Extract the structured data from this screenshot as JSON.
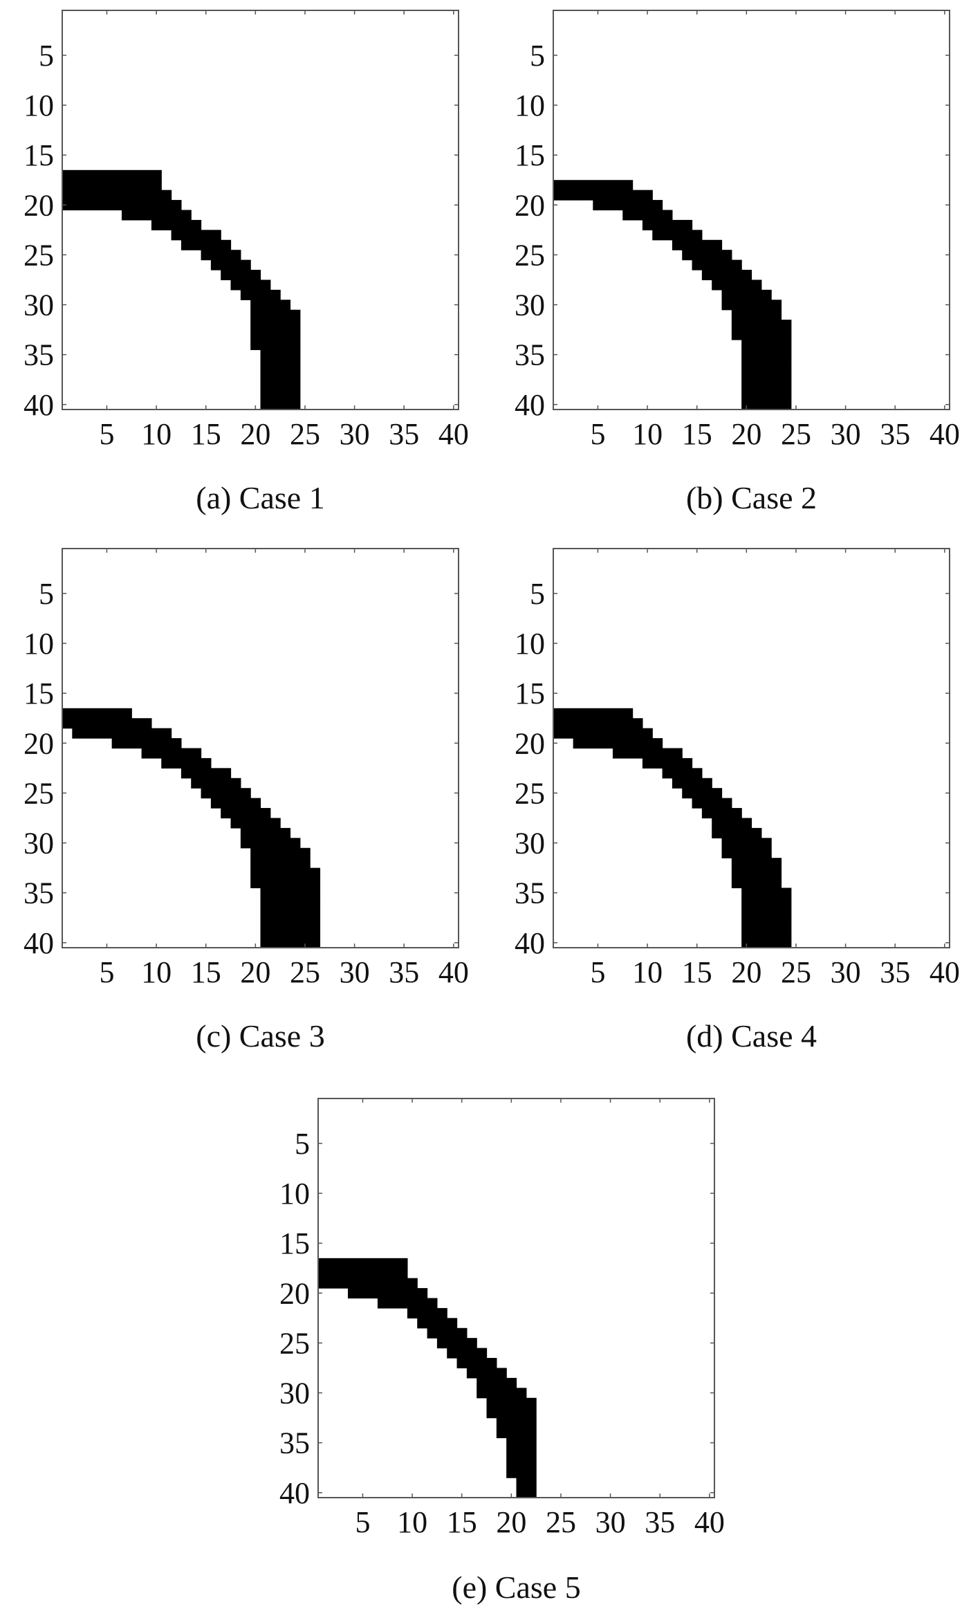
{
  "colors": {
    "band": "#000000",
    "background": "#ffffff",
    "frame": "#555555"
  },
  "chart_data": [
    {
      "type": "heatmap",
      "caption": "(a) Case 1",
      "xlim": [
        0.5,
        40.5
      ],
      "ylim": [
        0.5,
        40.5
      ],
      "xticks": [
        5,
        10,
        15,
        20,
        25,
        30,
        35,
        40
      ],
      "yticks": [
        5,
        10,
        15,
        20,
        25,
        30,
        35,
        40
      ],
      "band_rows": [
        {
          "row": 17,
          "start": 1,
          "end": 10
        },
        {
          "row": 18,
          "start": 1,
          "end": 10
        },
        {
          "row": 19,
          "start": 1,
          "end": 11
        },
        {
          "row": 20,
          "start": 1,
          "end": 12
        },
        {
          "row": 21,
          "start": 7,
          "end": 13
        },
        {
          "row": 22,
          "start": 10,
          "end": 14
        },
        {
          "row": 23,
          "start": 12,
          "end": 16
        },
        {
          "row": 24,
          "start": 13,
          "end": 17
        },
        {
          "row": 25,
          "start": 15,
          "end": 18
        },
        {
          "row": 26,
          "start": 16,
          "end": 19
        },
        {
          "row": 27,
          "start": 17,
          "end": 20
        },
        {
          "row": 28,
          "start": 18,
          "end": 21
        },
        {
          "row": 29,
          "start": 19,
          "end": 22
        },
        {
          "row": 30,
          "start": 20,
          "end": 23
        },
        {
          "row": 31,
          "start": 20,
          "end": 24
        },
        {
          "row": 32,
          "start": 20,
          "end": 24
        },
        {
          "row": 33,
          "start": 20,
          "end": 24
        },
        {
          "row": 34,
          "start": 20,
          "end": 24
        },
        {
          "row": 35,
          "start": 21,
          "end": 24
        },
        {
          "row": 36,
          "start": 21,
          "end": 24
        },
        {
          "row": 37,
          "start": 21,
          "end": 24
        },
        {
          "row": 38,
          "start": 21,
          "end": 24
        },
        {
          "row": 39,
          "start": 21,
          "end": 24
        },
        {
          "row": 40,
          "start": 21,
          "end": 24
        }
      ]
    },
    {
      "type": "heatmap",
      "caption": "(b) Case 2",
      "xlim": [
        0.5,
        40.5
      ],
      "ylim": [
        0.5,
        40.5
      ],
      "xticks": [
        5,
        10,
        15,
        20,
        25,
        30,
        35,
        40
      ],
      "yticks": [
        5,
        10,
        15,
        20,
        25,
        30,
        35,
        40
      ],
      "band_rows": [
        {
          "row": 18,
          "start": 1,
          "end": 8
        },
        {
          "row": 19,
          "start": 1,
          "end": 10
        },
        {
          "row": 20,
          "start": 5,
          "end": 11
        },
        {
          "row": 21,
          "start": 8,
          "end": 12
        },
        {
          "row": 22,
          "start": 10,
          "end": 14
        },
        {
          "row": 23,
          "start": 11,
          "end": 15
        },
        {
          "row": 24,
          "start": 13,
          "end": 17
        },
        {
          "row": 25,
          "start": 14,
          "end": 18
        },
        {
          "row": 26,
          "start": 15,
          "end": 19
        },
        {
          "row": 27,
          "start": 16,
          "end": 20
        },
        {
          "row": 28,
          "start": 17,
          "end": 21
        },
        {
          "row": 29,
          "start": 18,
          "end": 22
        },
        {
          "row": 30,
          "start": 18,
          "end": 23
        },
        {
          "row": 31,
          "start": 19,
          "end": 23
        },
        {
          "row": 32,
          "start": 19,
          "end": 24
        },
        {
          "row": 33,
          "start": 19,
          "end": 24
        },
        {
          "row": 34,
          "start": 20,
          "end": 24
        },
        {
          "row": 35,
          "start": 20,
          "end": 24
        },
        {
          "row": 36,
          "start": 20,
          "end": 24
        },
        {
          "row": 37,
          "start": 20,
          "end": 24
        },
        {
          "row": 38,
          "start": 20,
          "end": 24
        },
        {
          "row": 39,
          "start": 20,
          "end": 24
        },
        {
          "row": 40,
          "start": 20,
          "end": 24
        }
      ]
    },
    {
      "type": "heatmap",
      "caption": "(c) Case 3",
      "xlim": [
        0.5,
        40.5
      ],
      "ylim": [
        0.5,
        40.5
      ],
      "xticks": [
        5,
        10,
        15,
        20,
        25,
        30,
        35,
        40
      ],
      "yticks": [
        5,
        10,
        15,
        20,
        25,
        30,
        35,
        40
      ],
      "band_rows": [
        {
          "row": 17,
          "start": 1,
          "end": 7
        },
        {
          "row": 18,
          "start": 1,
          "end": 9
        },
        {
          "row": 19,
          "start": 2,
          "end": 11
        },
        {
          "row": 20,
          "start": 6,
          "end": 12
        },
        {
          "row": 21,
          "start": 9,
          "end": 14
        },
        {
          "row": 22,
          "start": 11,
          "end": 15
        },
        {
          "row": 23,
          "start": 13,
          "end": 17
        },
        {
          "row": 24,
          "start": 14,
          "end": 18
        },
        {
          "row": 25,
          "start": 15,
          "end": 19
        },
        {
          "row": 26,
          "start": 16,
          "end": 20
        },
        {
          "row": 27,
          "start": 17,
          "end": 21
        },
        {
          "row": 28,
          "start": 18,
          "end": 22
        },
        {
          "row": 29,
          "start": 19,
          "end": 23
        },
        {
          "row": 30,
          "start": 19,
          "end": 24
        },
        {
          "row": 31,
          "start": 20,
          "end": 25
        },
        {
          "row": 32,
          "start": 20,
          "end": 25
        },
        {
          "row": 33,
          "start": 20,
          "end": 26
        },
        {
          "row": 34,
          "start": 20,
          "end": 26
        },
        {
          "row": 35,
          "start": 21,
          "end": 26
        },
        {
          "row": 36,
          "start": 21,
          "end": 26
        },
        {
          "row": 37,
          "start": 21,
          "end": 26
        },
        {
          "row": 38,
          "start": 21,
          "end": 26
        },
        {
          "row": 39,
          "start": 21,
          "end": 26
        },
        {
          "row": 40,
          "start": 21,
          "end": 26
        }
      ]
    },
    {
      "type": "heatmap",
      "caption": "(d) Case 4",
      "xlim": [
        0.5,
        40.5
      ],
      "ylim": [
        0.5,
        40.5
      ],
      "xticks": [
        5,
        10,
        15,
        20,
        25,
        30,
        35,
        40
      ],
      "yticks": [
        5,
        10,
        15,
        20,
        25,
        30,
        35,
        40
      ],
      "band_rows": [
        {
          "row": 17,
          "start": 1,
          "end": 8
        },
        {
          "row": 18,
          "start": 1,
          "end": 9
        },
        {
          "row": 19,
          "start": 1,
          "end": 10
        },
        {
          "row": 20,
          "start": 3,
          "end": 11
        },
        {
          "row": 21,
          "start": 7,
          "end": 13
        },
        {
          "row": 22,
          "start": 10,
          "end": 14
        },
        {
          "row": 23,
          "start": 12,
          "end": 15
        },
        {
          "row": 24,
          "start": 13,
          "end": 16
        },
        {
          "row": 25,
          "start": 14,
          "end": 17
        },
        {
          "row": 26,
          "start": 15,
          "end": 18
        },
        {
          "row": 27,
          "start": 16,
          "end": 19
        },
        {
          "row": 28,
          "start": 17,
          "end": 20
        },
        {
          "row": 29,
          "start": 17,
          "end": 21
        },
        {
          "row": 30,
          "start": 18,
          "end": 22
        },
        {
          "row": 31,
          "start": 18,
          "end": 22
        },
        {
          "row": 32,
          "start": 19,
          "end": 23
        },
        {
          "row": 33,
          "start": 19,
          "end": 23
        },
        {
          "row": 34,
          "start": 19,
          "end": 23
        },
        {
          "row": 35,
          "start": 20,
          "end": 24
        },
        {
          "row": 36,
          "start": 20,
          "end": 24
        },
        {
          "row": 37,
          "start": 20,
          "end": 24
        },
        {
          "row": 38,
          "start": 20,
          "end": 24
        },
        {
          "row": 39,
          "start": 20,
          "end": 24
        },
        {
          "row": 40,
          "start": 20,
          "end": 24
        }
      ]
    },
    {
      "type": "heatmap",
      "caption": "(e) Case 5",
      "xlim": [
        0.5,
        40.5
      ],
      "ylim": [
        0.5,
        40.5
      ],
      "xticks": [
        5,
        10,
        15,
        20,
        25,
        30,
        35,
        40
      ],
      "yticks": [
        5,
        10,
        15,
        20,
        25,
        30,
        35,
        40
      ],
      "band_rows": [
        {
          "row": 17,
          "start": 1,
          "end": 9
        },
        {
          "row": 18,
          "start": 1,
          "end": 9
        },
        {
          "row": 19,
          "start": 1,
          "end": 10
        },
        {
          "row": 20,
          "start": 4,
          "end": 11
        },
        {
          "row": 21,
          "start": 7,
          "end": 12
        },
        {
          "row": 22,
          "start": 10,
          "end": 13
        },
        {
          "row": 23,
          "start": 11,
          "end": 14
        },
        {
          "row": 24,
          "start": 12,
          "end": 15
        },
        {
          "row": 25,
          "start": 13,
          "end": 16
        },
        {
          "row": 26,
          "start": 14,
          "end": 17
        },
        {
          "row": 27,
          "start": 15,
          "end": 18
        },
        {
          "row": 28,
          "start": 16,
          "end": 19
        },
        {
          "row": 29,
          "start": 17,
          "end": 20
        },
        {
          "row": 30,
          "start": 17,
          "end": 21
        },
        {
          "row": 31,
          "start": 18,
          "end": 22
        },
        {
          "row": 32,
          "start": 18,
          "end": 22
        },
        {
          "row": 33,
          "start": 19,
          "end": 22
        },
        {
          "row": 34,
          "start": 19,
          "end": 22
        },
        {
          "row": 35,
          "start": 20,
          "end": 22
        },
        {
          "row": 36,
          "start": 20,
          "end": 22
        },
        {
          "row": 37,
          "start": 20,
          "end": 22
        },
        {
          "row": 38,
          "start": 20,
          "end": 22
        },
        {
          "row": 39,
          "start": 21,
          "end": 22
        },
        {
          "row": 40,
          "start": 21,
          "end": 22
        }
      ]
    }
  ]
}
